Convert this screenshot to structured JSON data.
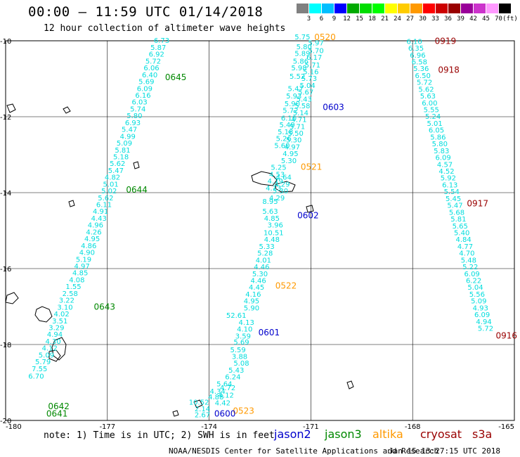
{
  "title": "00:00 – 11:59 UTC 01/14/2018",
  "subtitle": "12 hour collection of altimeter wave heights",
  "scale": {
    "unit_label": "(ft)",
    "colors": [
      "#808080",
      "#00ffff",
      "#00bfff",
      "#0000ff",
      "#00aa00",
      "#00dd00",
      "#00ff00",
      "#ffff00",
      "#ffcc00",
      "#ff9900",
      "#ff0000",
      "#cc0000",
      "#990000",
      "#990099",
      "#cc33cc",
      "#ff99ff",
      "#000000"
    ],
    "labels": [
      "3",
      "6",
      "9",
      "12",
      "15",
      "18",
      "21",
      "24",
      "27",
      "30",
      "33",
      "36",
      "39",
      "42",
      "45",
      "70"
    ]
  },
  "axes": {
    "lat_labels": [
      "-10",
      "-12",
      "-14",
      "-16",
      "-18",
      "-20"
    ],
    "lat_values": [
      -10,
      -12,
      -14,
      -16,
      -18,
      -20
    ],
    "lon_labels": [
      "-180",
      "-177",
      "-174",
      "-171",
      "-168",
      "-165"
    ],
    "lon_values": [
      -180,
      -177,
      -174,
      -171,
      -168,
      -165
    ],
    "lat_range": [
      -10,
      -20
    ],
    "lon_range": [
      -180,
      -165
    ]
  },
  "colors": {
    "jason2": "#0000cc",
    "jason3": "#008800",
    "altika": "#ff9900",
    "cryosat": "#990000",
    "s3a": "#990000",
    "swh": "#00dddd",
    "land": "#000000",
    "grid": "#000000"
  },
  "time_labels": [
    {
      "text": "0645",
      "sat": "jason3",
      "lon": -175.3,
      "lat": -11.04
    },
    {
      "text": "0644",
      "sat": "jason3",
      "lon": -176.45,
      "lat": -14.0
    },
    {
      "text": "0643",
      "sat": "jason3",
      "lon": -177.4,
      "lat": -17.08
    },
    {
      "text": "0642",
      "sat": "jason3",
      "lon": -178.75,
      "lat": -19.7
    },
    {
      "text": "0641",
      "sat": "jason3",
      "lon": -178.8,
      "lat": -19.9
    },
    {
      "text": "0520",
      "sat": "altika",
      "lon": -170.9,
      "lat": -9.98
    },
    {
      "text": "0521",
      "sat": "altika",
      "lon": -171.3,
      "lat": -13.4
    },
    {
      "text": "0522",
      "sat": "altika",
      "lon": -172.05,
      "lat": -16.53
    },
    {
      "text": "0523",
      "sat": "altika",
      "lon": -173.3,
      "lat": -19.82
    },
    {
      "text": "0603",
      "sat": "jason2",
      "lon": -170.65,
      "lat": -11.82
    },
    {
      "text": "0602",
      "sat": "jason2",
      "lon": -171.4,
      "lat": -14.68
    },
    {
      "text": "0601",
      "sat": "jason2",
      "lon": -172.55,
      "lat": -17.76
    },
    {
      "text": "0600",
      "sat": "jason2",
      "lon": -173.85,
      "lat": -19.9
    },
    {
      "text": "0919",
      "sat": "cryosat",
      "lon": -167.35,
      "lat": -10.08
    },
    {
      "text": "0918",
      "sat": "cryosat",
      "lon": -167.25,
      "lat": -10.84
    },
    {
      "text": "0917",
      "sat": "cryosat",
      "lon": -166.4,
      "lat": -14.36
    },
    {
      "text": "0916",
      "sat": "cryosat",
      "lon": -165.55,
      "lat": -17.84
    }
  ],
  "tracks": [
    {
      "name": "jason3",
      "color": "swh",
      "values": [
        {
          "v": "6.73",
          "lon": -175.4,
          "lat": -10.06
        },
        {
          "v": "5.87",
          "lon": -175.5,
          "lat": -10.24
        },
        {
          "v": "6.92",
          "lon": -175.55,
          "lat": -10.42
        },
        {
          "v": "5.72",
          "lon": -175.65,
          "lat": -10.6
        },
        {
          "v": "6.06",
          "lon": -175.7,
          "lat": -10.78
        },
        {
          "v": "6.40",
          "lon": -175.75,
          "lat": -10.96
        },
        {
          "v": "5.69",
          "lon": -175.85,
          "lat": -11.14
        },
        {
          "v": "6.09",
          "lon": -175.9,
          "lat": -11.32
        },
        {
          "v": "6.16",
          "lon": -175.95,
          "lat": -11.5
        },
        {
          "v": "6.03",
          "lon": -176.05,
          "lat": -11.68
        },
        {
          "v": "5.74",
          "lon": -176.1,
          "lat": -11.86
        },
        {
          "v": "5.80",
          "lon": -176.2,
          "lat": -12.04
        },
        {
          "v": "6.93",
          "lon": -176.25,
          "lat": -12.22
        },
        {
          "v": "5.47",
          "lon": -176.35,
          "lat": -12.4
        },
        {
          "v": "4.99",
          "lon": -176.4,
          "lat": -12.58
        },
        {
          "v": "5.09",
          "lon": -176.5,
          "lat": -12.76
        },
        {
          "v": "5.81",
          "lon": -176.55,
          "lat": -12.94
        },
        {
          "v": "5.18",
          "lon": -176.6,
          "lat": -13.12
        },
        {
          "v": "5.62",
          "lon": -176.7,
          "lat": -13.3
        },
        {
          "v": "5.47",
          "lon": -176.75,
          "lat": -13.48
        },
        {
          "v": "4.82",
          "lon": -176.85,
          "lat": -13.66
        },
        {
          "v": "5.01",
          "lon": -176.9,
          "lat": -13.84
        },
        {
          "v": "5.02",
          "lon": -176.95,
          "lat": -14.02
        },
        {
          "v": "5.62",
          "lon": -177.05,
          "lat": -14.2
        },
        {
          "v": "6.11",
          "lon": -177.1,
          "lat": -14.38
        },
        {
          "v": "4.91",
          "lon": -177.2,
          "lat": -14.56
        },
        {
          "v": "4.43",
          "lon": -177.25,
          "lat": -14.74
        },
        {
          "v": "4.96",
          "lon": -177.35,
          "lat": -14.92
        },
        {
          "v": "4.26",
          "lon": -177.4,
          "lat": -15.1
        },
        {
          "v": "4.95",
          "lon": -177.45,
          "lat": -15.28
        },
        {
          "v": "4.86",
          "lon": -177.55,
          "lat": -15.46
        },
        {
          "v": "4.90",
          "lon": -177.6,
          "lat": -15.64
        },
        {
          "v": "5.19",
          "lon": -177.7,
          "lat": -15.82
        },
        {
          "v": "4.97",
          "lon": -177.75,
          "lat": -16.0
        },
        {
          "v": "4.85",
          "lon": -177.8,
          "lat": -16.18
        },
        {
          "v": "4.08",
          "lon": -177.9,
          "lat": -16.36
        },
        {
          "v": "1.55",
          "lon": -178.0,
          "lat": -16.54
        },
        {
          "v": "2.58",
          "lon": -178.1,
          "lat": -16.72
        },
        {
          "v": "3.22",
          "lon": -178.2,
          "lat": -16.9
        },
        {
          "v": "3.10",
          "lon": -178.25,
          "lat": -17.08
        },
        {
          "v": "4.02",
          "lon": -178.35,
          "lat": -17.26
        },
        {
          "v": "3.51",
          "lon": -178.4,
          "lat": -17.44
        },
        {
          "v": "3.29",
          "lon": -178.5,
          "lat": -17.62
        },
        {
          "v": "4.94",
          "lon": -178.55,
          "lat": -17.8
        },
        {
          "v": "4.30",
          "lon": -178.6,
          "lat": -17.98
        },
        {
          "v": "4.12",
          "lon": -178.7,
          "lat": -18.16
        },
        {
          "v": "5.09",
          "lon": -178.8,
          "lat": -18.34
        },
        {
          "v": "5.79",
          "lon": -178.9,
          "lat": -18.52
        },
        {
          "v": "7.55",
          "lon": -179.0,
          "lat": -18.7
        },
        {
          "v": "6.70",
          "lon": -179.1,
          "lat": -18.9
        }
      ]
    },
    {
      "name": "altika-jason2",
      "color": "swh",
      "values": [
        {
          "v": "5.75",
          "lon": -171.25,
          "lat": -9.96
        },
        {
          "v": "5.97",
          "lon": -170.85,
          "lat": -10.12
        },
        {
          "v": "5.80",
          "lon": -171.2,
          "lat": -10.22
        },
        {
          "v": "5.70",
          "lon": -170.85,
          "lat": -10.32
        },
        {
          "v": "5.89",
          "lon": -171.25,
          "lat": -10.4
        },
        {
          "v": "6.17",
          "lon": -170.9,
          "lat": -10.5
        },
        {
          "v": "5.86",
          "lon": -171.3,
          "lat": -10.6
        },
        {
          "v": "5.71",
          "lon": -170.95,
          "lat": -10.7
        },
        {
          "v": "5.98",
          "lon": -171.35,
          "lat": -10.78
        },
        {
          "v": "5.16",
          "lon": -171.0,
          "lat": -10.88
        },
        {
          "v": "5.73",
          "lon": -171.05,
          "lat": -11.06
        },
        {
          "v": "5.52",
          "lon": -171.4,
          "lat": -11.0
        },
        {
          "v": "5.04",
          "lon": -171.1,
          "lat": -11.24
        },
        {
          "v": "5.47",
          "lon": -171.45,
          "lat": -11.32
        },
        {
          "v": "5.67",
          "lon": -171.15,
          "lat": -11.42
        },
        {
          "v": "5.93",
          "lon": -171.5,
          "lat": -11.52
        },
        {
          "v": "5.43",
          "lon": -171.2,
          "lat": -11.6
        },
        {
          "v": "5.90",
          "lon": -171.55,
          "lat": -11.72
        },
        {
          "v": "5.58",
          "lon": -171.25,
          "lat": -11.78
        },
        {
          "v": "5.72",
          "lon": -171.6,
          "lat": -11.9
        },
        {
          "v": "5.14",
          "lon": -171.3,
          "lat": -11.96
        },
        {
          "v": "6.10",
          "lon": -171.65,
          "lat": -12.1
        },
        {
          "v": "4.71",
          "lon": -171.35,
          "lat": -12.14
        },
        {
          "v": "5.71",
          "lon": -171.4,
          "lat": -12.32
        },
        {
          "v": "5.49",
          "lon": -171.7,
          "lat": -12.28
        },
        {
          "v": "5.18",
          "lon": -171.75,
          "lat": -12.46
        },
        {
          "v": "5.50",
          "lon": -171.45,
          "lat": -12.5
        },
        {
          "v": "5.26",
          "lon": -171.8,
          "lat": -12.64
        },
        {
          "v": "5.30",
          "lon": -171.5,
          "lat": -12.68
        },
        {
          "v": "5.60",
          "lon": -171.85,
          "lat": -12.82
        },
        {
          "v": "4.97",
          "lon": -171.55,
          "lat": -12.86
        },
        {
          "v": "4.95",
          "lon": -171.6,
          "lat": -13.04
        },
        {
          "v": "5.30",
          "lon": -171.65,
          "lat": -13.22
        },
        {
          "v": "5.25",
          "lon": -171.95,
          "lat": -13.4
        },
        {
          "v": "4.53",
          "lon": -172.0,
          "lat": -13.58
        },
        {
          "v": "4.64",
          "lon": -171.8,
          "lat": -13.66
        },
        {
          "v": "4.79",
          "lon": -172.05,
          "lat": -13.76
        },
        {
          "v": "4.29",
          "lon": -171.85,
          "lat": -13.84
        },
        {
          "v": "4.13",
          "lon": -172.1,
          "lat": -13.94
        },
        {
          "v": "5.30",
          "lon": -171.9,
          "lat": -14.02
        },
        {
          "v": "4.29",
          "lon": -172.0,
          "lat": -14.2
        },
        {
          "v": "8.95",
          "lon": -172.2,
          "lat": -14.3
        },
        {
          "v": "5.63",
          "lon": -172.2,
          "lat": -14.56
        },
        {
          "v": "4.85",
          "lon": -172.15,
          "lat": -14.74
        },
        {
          "v": "3.96",
          "lon": -172.05,
          "lat": -14.92
        },
        {
          "v": "10.51",
          "lon": -172.1,
          "lat": -15.12
        },
        {
          "v": "4.48",
          "lon": -172.15,
          "lat": -15.3
        },
        {
          "v": "5.33",
          "lon": -172.3,
          "lat": -15.48
        },
        {
          "v": "5.28",
          "lon": -172.35,
          "lat": -15.66
        },
        {
          "v": "4.01",
          "lon": -172.4,
          "lat": -15.84
        },
        {
          "v": "4.46",
          "lon": -172.45,
          "lat": -16.02
        },
        {
          "v": "5.30",
          "lon": -172.5,
          "lat": -16.2
        },
        {
          "v": "4.46",
          "lon": -172.55,
          "lat": -16.38
        },
        {
          "v": "4.45",
          "lon": -172.6,
          "lat": -16.56
        },
        {
          "v": "4.16",
          "lon": -172.7,
          "lat": -16.74
        },
        {
          "v": "4.95",
          "lon": -172.75,
          "lat": -16.92
        },
        {
          "v": "5.90",
          "lon": -172.75,
          "lat": -17.1
        },
        {
          "v": "52.61",
          "lon": -173.2,
          "lat": -17.3
        },
        {
          "v": "4.13",
          "lon": -172.9,
          "lat": -17.48
        },
        {
          "v": "4.10",
          "lon": -172.95,
          "lat": -17.66
        },
        {
          "v": "3.59",
          "lon": -173.0,
          "lat": -17.84
        },
        {
          "v": "5.69",
          "lon": -173.05,
          "lat": -18.0
        },
        {
          "v": "5.59",
          "lon": -173.15,
          "lat": -18.2
        },
        {
          "v": "3.88",
          "lon": -173.1,
          "lat": -18.38
        },
        {
          "v": "5.08",
          "lon": -173.05,
          "lat": -18.56
        },
        {
          "v": "5.43",
          "lon": -173.2,
          "lat": -18.74
        },
        {
          "v": "6.24",
          "lon": -173.3,
          "lat": -18.92
        },
        {
          "v": "5.64",
          "lon": -173.55,
          "lat": -19.1
        },
        {
          "v": "4.72",
          "lon": -173.45,
          "lat": -19.2
        },
        {
          "v": "4.34",
          "lon": -173.75,
          "lat": -19.3
        },
        {
          "v": "4.12",
          "lon": -173.5,
          "lat": -19.4
        },
        {
          "v": "4.88",
          "lon": -173.8,
          "lat": -19.44
        },
        {
          "v": "4.42",
          "lon": -173.6,
          "lat": -19.6
        },
        {
          "v": "10.52",
          "lon": -174.3,
          "lat": -19.58
        },
        {
          "v": "2.14",
          "lon": -174.2,
          "lat": -19.76
        },
        {
          "v": "2.67",
          "lon": -174.2,
          "lat": -19.92
        }
      ]
    },
    {
      "name": "cryosat",
      "color": "swh",
      "values": [
        {
          "v": "6.10",
          "lon": -167.95,
          "lat": -10.08
        },
        {
          "v": "6.35",
          "lon": -167.9,
          "lat": -10.26
        },
        {
          "v": "6.96",
          "lon": -167.85,
          "lat": -10.44
        },
        {
          "v": "6.58",
          "lon": -167.8,
          "lat": -10.62
        },
        {
          "v": "5.36",
          "lon": -167.75,
          "lat": -10.8
        },
        {
          "v": "6.50",
          "lon": -167.7,
          "lat": -10.98
        },
        {
          "v": "5.72",
          "lon": -167.65,
          "lat": -11.16
        },
        {
          "v": "5.62",
          "lon": -167.6,
          "lat": -11.34
        },
        {
          "v": "5.63",
          "lon": -167.55,
          "lat": -11.52
        },
        {
          "v": "6.00",
          "lon": -167.5,
          "lat": -11.7
        },
        {
          "v": "5.55",
          "lon": -167.45,
          "lat": -11.88
        },
        {
          "v": "5.24",
          "lon": -167.4,
          "lat": -12.06
        },
        {
          "v": "5.01",
          "lon": -167.35,
          "lat": -12.24
        },
        {
          "v": "6.05",
          "lon": -167.3,
          "lat": -12.42
        },
        {
          "v": "5.86",
          "lon": -167.25,
          "lat": -12.6
        },
        {
          "v": "5.80",
          "lon": -167.2,
          "lat": -12.78
        },
        {
          "v": "5.83",
          "lon": -167.15,
          "lat": -12.96
        },
        {
          "v": "6.09",
          "lon": -167.1,
          "lat": -13.14
        },
        {
          "v": "4.57",
          "lon": -167.05,
          "lat": -13.32
        },
        {
          "v": "4.52",
          "lon": -167.0,
          "lat": -13.5
        },
        {
          "v": "5.92",
          "lon": -166.95,
          "lat": -13.68
        },
        {
          "v": "6.13",
          "lon": -166.9,
          "lat": -13.86
        },
        {
          "v": "5.54",
          "lon": -166.85,
          "lat": -14.04
        },
        {
          "v": "5.45",
          "lon": -166.8,
          "lat": -14.22
        },
        {
          "v": "5.47",
          "lon": -166.75,
          "lat": -14.4
        },
        {
          "v": "5.68",
          "lon": -166.7,
          "lat": -14.58
        },
        {
          "v": "5.81",
          "lon": -166.65,
          "lat": -14.76
        },
        {
          "v": "5.65",
          "lon": -166.6,
          "lat": -14.94
        },
        {
          "v": "5.40",
          "lon": -166.55,
          "lat": -15.12
        },
        {
          "v": "4.84",
          "lon": -166.5,
          "lat": -15.3
        },
        {
          "v": "4.77",
          "lon": -166.45,
          "lat": -15.48
        },
        {
          "v": "4.70",
          "lon": -166.4,
          "lat": -15.66
        },
        {
          "v": "5.48",
          "lon": -166.35,
          "lat": -15.84
        },
        {
          "v": "5.22",
          "lon": -166.3,
          "lat": -16.02
        },
        {
          "v": "6.09",
          "lon": -166.25,
          "lat": -16.2
        },
        {
          "v": "6.22",
          "lon": -166.2,
          "lat": -16.38
        },
        {
          "v": "5.04",
          "lon": -166.15,
          "lat": -16.56
        },
        {
          "v": "5.56",
          "lon": -166.1,
          "lat": -16.74
        },
        {
          "v": "5.09",
          "lon": -166.05,
          "lat": -16.92
        },
        {
          "v": "4.93",
          "lon": -166.0,
          "lat": -17.1
        },
        {
          "v": "6.09",
          "lon": -165.95,
          "lat": -17.28
        },
        {
          "v": "4.94",
          "lon": -165.9,
          "lat": -17.46
        },
        {
          "v": "5.72",
          "lon": -165.85,
          "lat": -17.64
        }
      ]
    }
  ],
  "note": "note:  1) Time is in UTC; 2) SWH is in feet",
  "legend": [
    {
      "text": "jason2",
      "sat": "jason2"
    },
    {
      "text": "jason3",
      "sat": "jason3"
    },
    {
      "text": "altika",
      "sat": "altika"
    },
    {
      "text": "cryosat",
      "sat": "cryosat"
    },
    {
      "text": "s3a",
      "sat": "s3a"
    }
  ],
  "credit": "NOAA/NESDIS Center for Satellite Applications and Research",
  "stamp": "Jan 15 13:27:15 UTC 2018"
}
